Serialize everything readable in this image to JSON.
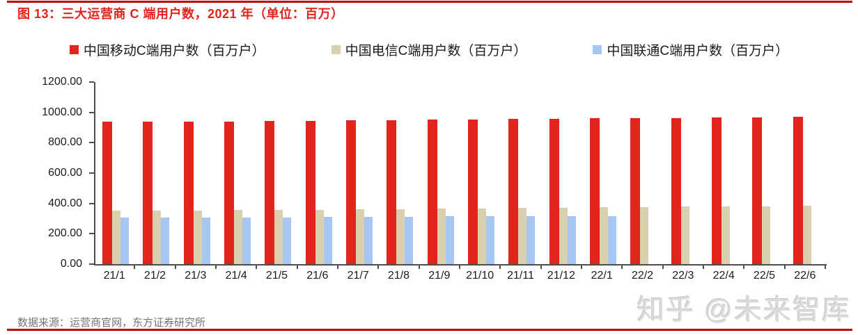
{
  "header": {
    "title": "图 13：三大运营商 C 端用户数，2021 年（单位：百万）"
  },
  "footer": {
    "source": "数据来源：运营商官网，东方证券研究所"
  },
  "watermark": {
    "text": "知乎 @未来智库"
  },
  "colors": {
    "title_red": "#e2231a",
    "rule_red": "#c00000",
    "mobile_red": "#e2241e",
    "telecom_tan": "#d9cfb1",
    "unicom_blue": "#a5c7f2",
    "axis_gray": "#4d4d4d"
  },
  "chart_data": {
    "type": "bar",
    "title": "图 13：三大运营商 C 端用户数，2021 年（单位：百万）",
    "xlabel": "",
    "ylabel": "",
    "ylim": [
      0,
      1200
    ],
    "ytick_step": 200,
    "ytick_labels": [
      "0.00",
      "200.00",
      "400.00",
      "600.00",
      "800.00",
      "1000.00",
      "1200.00"
    ],
    "grid": false,
    "legend_position": "top",
    "categories": [
      "21/1",
      "21/2",
      "21/3",
      "21/4",
      "21/5",
      "21/6",
      "21/7",
      "21/8",
      "21/9",
      "21/10",
      "21/11",
      "21/12",
      "22/1",
      "22/2",
      "22/3",
      "22/4",
      "22/5",
      "22/6"
    ],
    "series": [
      {
        "name": "中国移动C端用户数（百万户）",
        "color": "#e2241e",
        "values": [
          940,
          937,
          939,
          941,
          943,
          945,
          947,
          950,
          953,
          955,
          956,
          957,
          960,
          961,
          964,
          966,
          967,
          970
        ]
      },
      {
        "name": "中国电信C端用户数（百万户）",
        "color": "#d9cfb1",
        "values": [
          352,
          353,
          354,
          356,
          357,
          359,
          361,
          363,
          365,
          367,
          369,
          372,
          374,
          376,
          378,
          380,
          382,
          384
        ]
      },
      {
        "name": "中国联通C端用户数（百万户）",
        "color": "#a5c7f2",
        "values": [
          306,
          306,
          307,
          308,
          309,
          310,
          311,
          312,
          314,
          315,
          316,
          317,
          318,
          null,
          null,
          null,
          null,
          null
        ]
      }
    ]
  }
}
